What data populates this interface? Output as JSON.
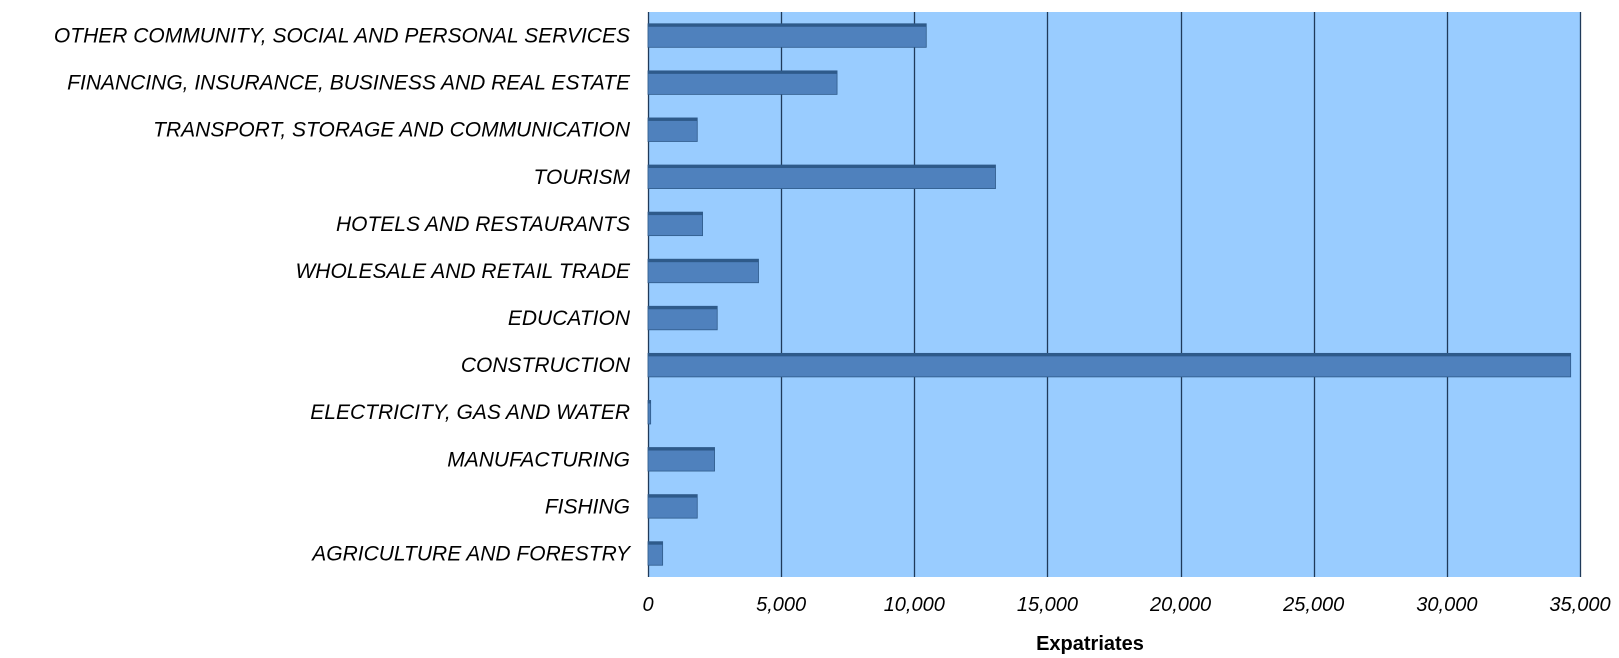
{
  "chart_data": {
    "type": "bar",
    "orientation": "horizontal",
    "categories": [
      "OTHER COMMUNITY, SOCIAL AND PERSONAL SERVICES",
      "FINANCING, INSURANCE, BUSINESS AND REAL ESTATE",
      "TRANSPORT, STORAGE AND COMMUNICATION",
      "TOURISM",
      "HOTELS AND RESTAURANTS",
      "WHOLESALE AND RETAIL TRADE",
      "EDUCATION",
      "CONSTRUCTION",
      "ELECTRICITY, GAS AND WATER",
      "MANUFACTURING",
      "FISHING",
      "AGRICULTURE AND FORESTRY"
    ],
    "values": [
      10450,
      7100,
      1850,
      13050,
      2050,
      4150,
      2600,
      34650,
      100,
      2500,
      1850,
      550
    ],
    "xlabel": "Expatriates",
    "ylabel": "",
    "title": "",
    "xlim": [
      0,
      35000
    ],
    "xticks": [
      0,
      5000,
      10000,
      15000,
      20000,
      25000,
      30000,
      35000
    ],
    "xtick_labels": [
      "0",
      "5,000",
      "10,000",
      "15,000",
      "20,000",
      "25,000",
      "30,000",
      "35,000"
    ],
    "grid": "vertical",
    "legend": "none",
    "colors": {
      "plot_background": "#99ccff",
      "bar_fill": "#4f81bd",
      "bar_top": "#2e5a8a",
      "grid": "#1f3a5a"
    }
  }
}
